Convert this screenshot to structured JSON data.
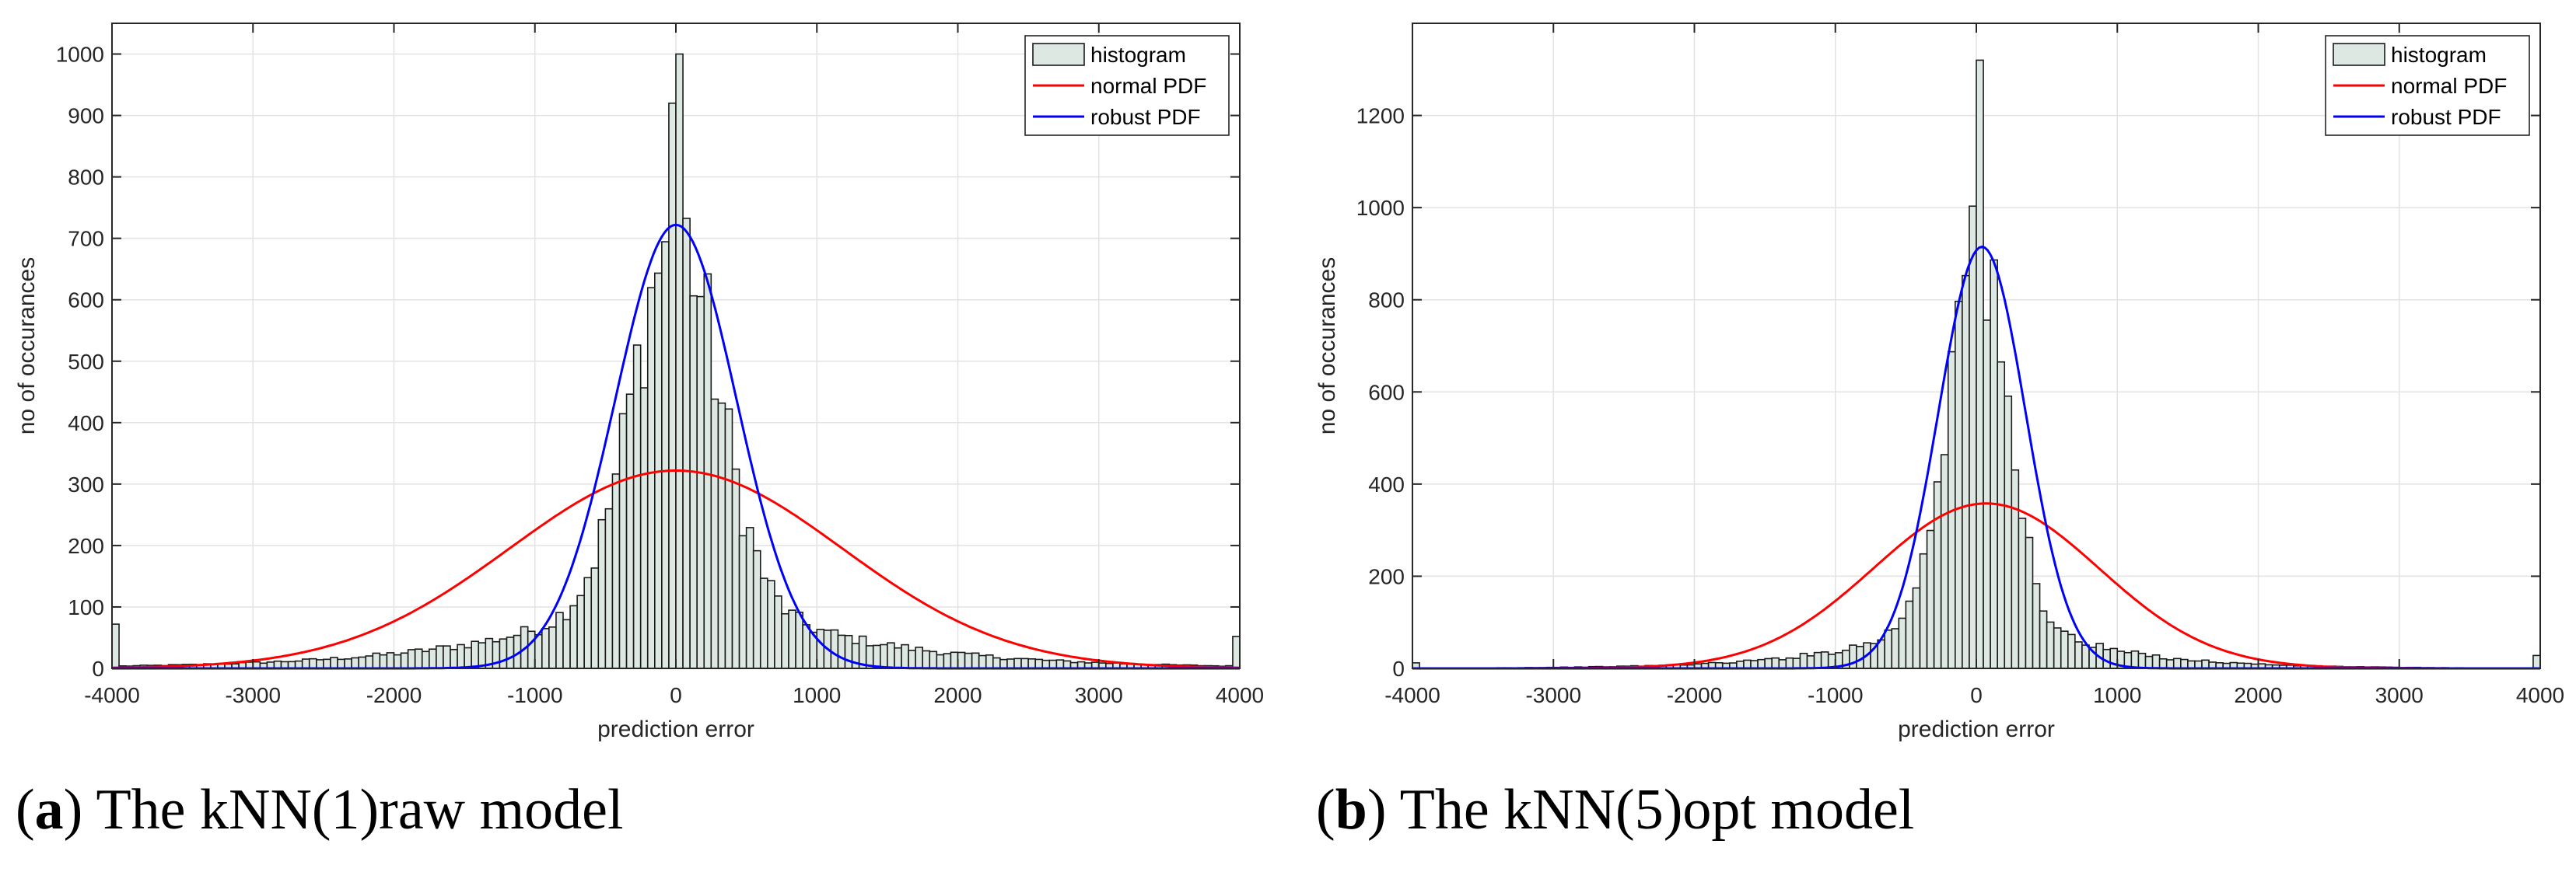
{
  "chart_data": [
    {
      "type": "histogram",
      "panel_letter": "a",
      "caption": "The kNN(1)raw model",
      "xlabel": "prediction error",
      "ylabel": "no of occurances",
      "xlim": [
        -4000,
        4000
      ],
      "ylim": [
        0,
        1050
      ],
      "xticks": [
        -4000,
        -3000,
        -2000,
        -1000,
        0,
        1000,
        2000,
        3000,
        4000
      ],
      "yticks": [
        0,
        100,
        200,
        300,
        400,
        500,
        600,
        700,
        800,
        900,
        1000
      ],
      "grid": true,
      "legend": {
        "position": "top-right",
        "entries": [
          "histogram",
          "normal PDF",
          "robust PDF"
        ]
      },
      "bin_width": 50,
      "peak_count": 1000,
      "series": [
        {
          "name": "normal PDF",
          "type": "gaussian",
          "mu": 0,
          "sigma": 1180,
          "peak": 322,
          "color": "#ff0000"
        },
        {
          "name": "robust PDF",
          "type": "gaussian",
          "mu": 0,
          "sigma": 430,
          "peak": 722,
          "color": "#0000ff"
        }
      ],
      "histogram_model": {
        "core_sigma": 300,
        "core_peak": 560,
        "tail_scale": 1050,
        "tail_peak": 160,
        "edge_left": 72,
        "edge_right": 52
      }
    },
    {
      "type": "histogram",
      "panel_letter": "b",
      "caption": "The kNN(5)opt model",
      "xlabel": "prediction error",
      "ylabel": "no of occurances",
      "xlim": [
        -4000,
        4000
      ],
      "ylim": [
        0,
        1400
      ],
      "xticks": [
        -4000,
        -3000,
        -2000,
        -1000,
        0,
        1000,
        2000,
        3000,
        4000
      ],
      "yticks": [
        0,
        200,
        400,
        600,
        800,
        1000,
        1200
      ],
      "grid": true,
      "legend": {
        "position": "top-right",
        "entries": [
          "histogram",
          "normal PDF",
          "robust PDF"
        ]
      },
      "bin_width": 50,
      "peak_count": 1320,
      "series": [
        {
          "name": "normal PDF",
          "type": "gaussian",
          "mu": 70,
          "sigma": 800,
          "peak": 358,
          "color": "#ff0000"
        },
        {
          "name": "robust PDF",
          "type": "gaussian",
          "mu": 40,
          "sigma": 310,
          "peak": 915,
          "color": "#0000ff"
        }
      ],
      "histogram_model": {
        "core_sigma": 215,
        "core_peak": 740,
        "tail_scale": 700,
        "tail_peak": 160,
        "edge_left": 12,
        "edge_right": 28
      }
    }
  ]
}
